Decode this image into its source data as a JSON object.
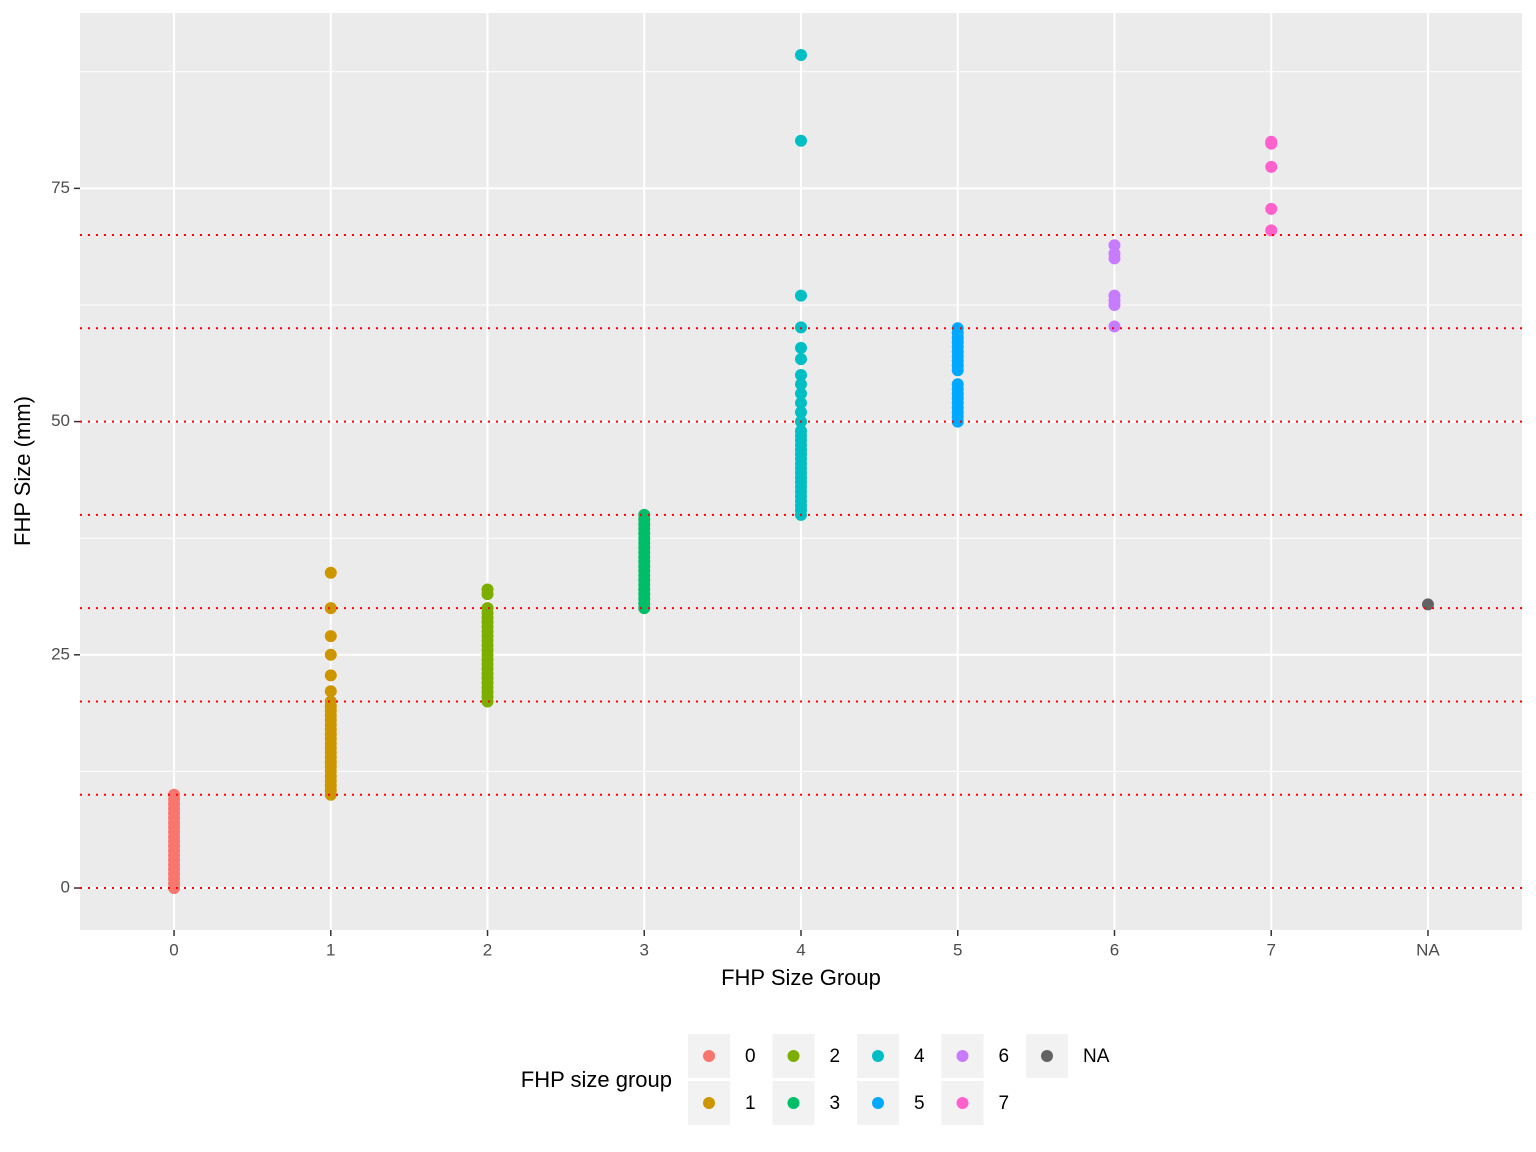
{
  "chart_data": {
    "type": "strip",
    "x_label": "FHP Size Group",
    "y_label": "FHP Size (mm)",
    "categories": [
      "0",
      "1",
      "2",
      "3",
      "4",
      "5",
      "6",
      "7",
      "NA"
    ],
    "ylim": [
      -4.5,
      93.8
    ],
    "yticks": [
      0,
      25,
      50,
      75
    ],
    "minor_yticks": [
      12.5,
      37.5,
      62.5,
      87.5
    ],
    "grid": true,
    "reference_lines": [
      0,
      10,
      20,
      30,
      40,
      50,
      60,
      70
    ],
    "reference_color": "#ff0000",
    "legend_title": "FHP size group",
    "legend_position": "bottom",
    "series": [
      {
        "name": "0",
        "color": "#F8766D",
        "values": [
          0,
          0.5,
          1,
          1.5,
          2,
          2.5,
          3,
          3.5,
          4,
          4.5,
          5,
          5.5,
          6,
          6.5,
          7,
          7.5,
          8,
          8.5,
          9,
          9.5,
          10
        ]
      },
      {
        "name": "1",
        "color": "#CD9600",
        "values": [
          10,
          10.5,
          11,
          11.5,
          12,
          12.5,
          13,
          13.5,
          14,
          14.5,
          15,
          15.5,
          16,
          16.5,
          17,
          17.5,
          18,
          18.5,
          19,
          19.5,
          20,
          21.1,
          22.8,
          25,
          27,
          30,
          33.8
        ]
      },
      {
        "name": "2",
        "color": "#7CAE00",
        "values": [
          20,
          20.5,
          21,
          21.5,
          22,
          22.5,
          23,
          23.5,
          24,
          24.5,
          25,
          25.5,
          26,
          26.5,
          27,
          27.5,
          28,
          28.5,
          29,
          29.5,
          30,
          31.5,
          32
        ]
      },
      {
        "name": "3",
        "color": "#00BE67",
        "values": [
          30,
          30.5,
          31,
          31.5,
          32,
          32.5,
          33,
          33.5,
          34,
          34.5,
          35,
          35.5,
          36,
          36.5,
          37,
          37.5,
          38,
          38.5,
          39,
          39.5,
          40
        ]
      },
      {
        "name": "4",
        "color": "#00BFC4",
        "values": [
          40,
          40.5,
          41,
          41.5,
          42,
          42.5,
          43,
          43.5,
          44,
          44.5,
          45,
          45.5,
          46,
          46.5,
          47,
          47.5,
          48,
          48.5,
          49,
          50,
          51,
          52,
          53,
          54,
          55,
          56.7,
          57.9,
          60.1,
          63.5,
          80.1,
          89.3
        ]
      },
      {
        "name": "5",
        "color": "#00A9FF",
        "values": [
          50,
          50.5,
          51,
          51.5,
          52,
          52.5,
          53,
          53.5,
          54,
          55.5,
          56,
          56.5,
          57,
          57.5,
          58,
          58.5,
          59,
          59.5,
          60
        ]
      },
      {
        "name": "6",
        "color": "#C77CFF",
        "values": [
          60.2,
          62.5,
          63,
          63.5,
          67.5,
          68,
          68.9
        ]
      },
      {
        "name": "7",
        "color": "#FF61CC",
        "values": [
          70.5,
          72.8,
          77.3,
          79.8,
          80
        ]
      },
      {
        "name": "NA",
        "color": "#636363",
        "values": [
          30.4
        ]
      }
    ]
  }
}
